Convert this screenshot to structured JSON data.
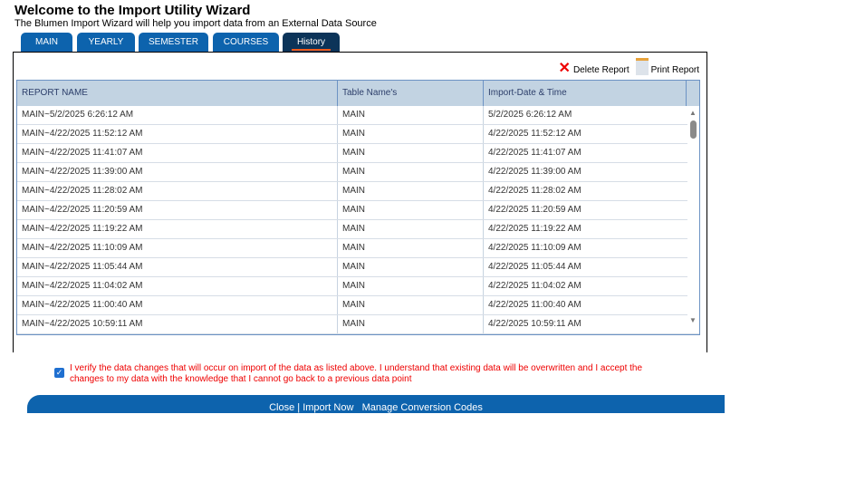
{
  "header": {
    "title": "Welcome to the Import Utility Wizard",
    "subtitle": "The Blumen Import Wizard will help you import data from an External Data Source"
  },
  "tabs": [
    {
      "label": "MAIN"
    },
    {
      "label": "YEARLY"
    },
    {
      "label": "SEMESTER"
    },
    {
      "label": "COURSES"
    },
    {
      "label": "History",
      "active": true
    }
  ],
  "toolbar": {
    "delete_label": "Delete Report",
    "print_label": "Print Report"
  },
  "table": {
    "columns": [
      "REPORT NAME",
      "Table Name's",
      "Import-Date & Time"
    ],
    "rows": [
      [
        "MAIN~5/2/2025 6:26:12 AM",
        "MAIN",
        "5/2/2025 6:26:12 AM"
      ],
      [
        "MAIN~4/22/2025 11:52:12 AM",
        "MAIN",
        "4/22/2025 11:52:12 AM"
      ],
      [
        "MAIN~4/22/2025 11:41:07 AM",
        "MAIN",
        "4/22/2025 11:41:07 AM"
      ],
      [
        "MAIN~4/22/2025 11:39:00 AM",
        "MAIN",
        "4/22/2025 11:39:00 AM"
      ],
      [
        "MAIN~4/22/2025 11:28:02 AM",
        "MAIN",
        "4/22/2025 11:28:02 AM"
      ],
      [
        "MAIN~4/22/2025 11:20:59 AM",
        "MAIN",
        "4/22/2025 11:20:59 AM"
      ],
      [
        "MAIN~4/22/2025 11:19:22 AM",
        "MAIN",
        "4/22/2025 11:19:22 AM"
      ],
      [
        "MAIN~4/22/2025 11:10:09 AM",
        "MAIN",
        "4/22/2025 11:10:09 AM"
      ],
      [
        "MAIN~4/22/2025 11:05:44 AM",
        "MAIN",
        "4/22/2025 11:05:44 AM"
      ],
      [
        "MAIN~4/22/2025 11:04:02 AM",
        "MAIN",
        "4/22/2025 11:04:02 AM"
      ],
      [
        "MAIN~4/22/2025 11:00:40 AM",
        "MAIN",
        "4/22/2025 11:00:40 AM"
      ],
      [
        "MAIN~4/22/2025 10:59:11 AM",
        "MAIN",
        "4/22/2025 10:59:11 AM"
      ]
    ]
  },
  "verify": {
    "checked": true,
    "text": "I verify the data changes that will occur on import of the data as listed above. I understand that existing data will be overwritten and I accept the changes to my data with the knowledge that I cannot go back to a previous data point"
  },
  "footer": {
    "close": "Close",
    "import": "Import Now",
    "manage": "Manage Conversion Codes"
  },
  "colors": {
    "tab": "#0d63ad",
    "active_tab": "#0c3459",
    "accent": "#f05a1a",
    "warning_text": "#e00000"
  }
}
